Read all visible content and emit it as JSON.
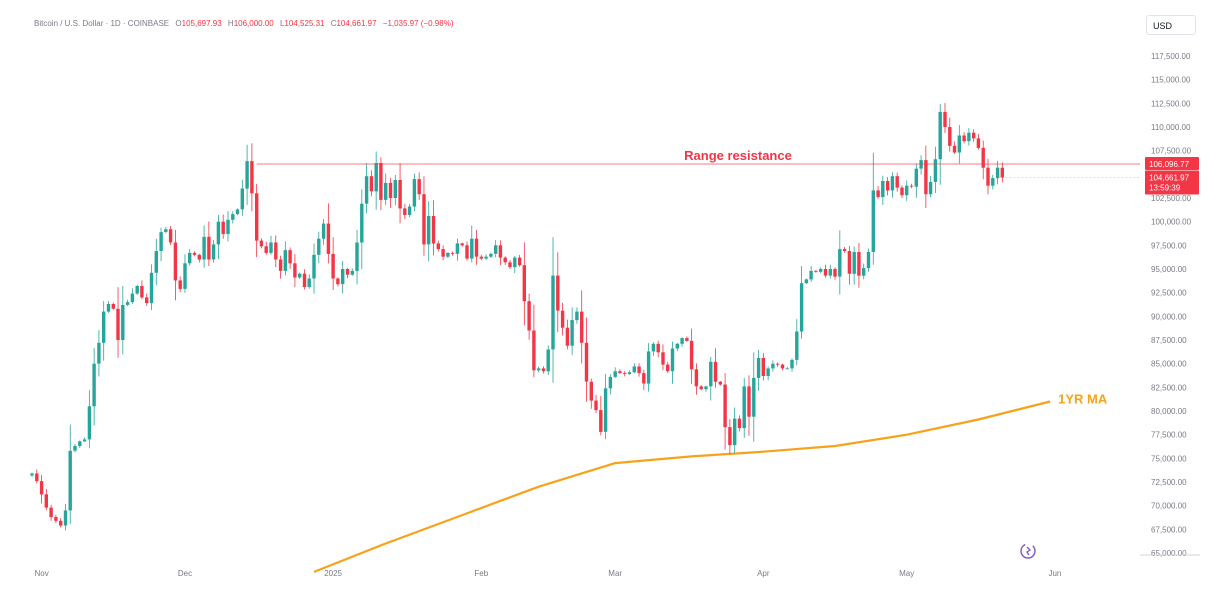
{
  "header": {
    "symbol": "Bitcoin / U.S. Dollar · 1D · COINBASE",
    "open_label": "O",
    "open": "105,697.93",
    "high_label": "H",
    "high": "106,000.00",
    "low_label": "L",
    "low": "104,525.31",
    "close_label": "C",
    "close": "104,661.97",
    "change": "−1,035.97 (−0.98%)"
  },
  "currency": "USD",
  "colors": {
    "up": "#26a69a",
    "down": "#f23645",
    "ma": "#f7a21b",
    "resistance": "#f23645",
    "axis_text": "#787b86"
  },
  "chart_data": {
    "type": "candlestick",
    "ylim": [
      65000,
      117500
    ],
    "y_ticks": [
      65000,
      67500,
      70000,
      72500,
      75000,
      77500,
      80000,
      82500,
      85000,
      87500,
      90000,
      92500,
      95000,
      97500,
      100000,
      102500,
      105000,
      107500,
      110000,
      112500,
      115000,
      117500
    ],
    "y_tick_labels": [
      "65,000.00",
      "67,500.00",
      "70,000.00",
      "72,500.00",
      "75,000.00",
      "77,500.00",
      "80,000.00",
      "82,500.00",
      "85,000.00",
      "87,500.00",
      "90,000.00",
      "92,500.00",
      "95,000.00",
      "97,500.00",
      "100,000.00",
      "102,500.00",
      "105,000.00",
      "107,500.00",
      "110,000.00",
      "112,500.00",
      "115,000.00",
      "117,500.00"
    ],
    "x_ticks": [
      {
        "label": "Nov",
        "date": "2024-11-01"
      },
      {
        "label": "Dec",
        "date": "2024-12-01"
      },
      {
        "label": "2025",
        "date": "2025-01-01"
      },
      {
        "label": "Feb",
        "date": "2025-02-01"
      },
      {
        "label": "Mar",
        "date": "2025-03-01"
      },
      {
        "label": "Apr",
        "date": "2025-04-01"
      },
      {
        "label": "May",
        "date": "2025-05-01"
      },
      {
        "label": "Jun",
        "date": "2025-06-01"
      }
    ],
    "start_date": "2024-10-30",
    "closes": [
      73400,
      72600,
      71200,
      69800,
      68800,
      68400,
      67900,
      69500,
      75800,
      76300,
      76800,
      77000,
      80500,
      85000,
      87200,
      90500,
      91300,
      90800,
      87500,
      91200,
      91500,
      92400,
      93200,
      92000,
      91400,
      94600,
      96900,
      98900,
      99200,
      97800,
      93800,
      92900,
      95600,
      96700,
      96500,
      96000,
      98400,
      96000,
      97600,
      100000,
      98700,
      100200,
      100800,
      101300,
      103500,
      106400,
      103000,
      98000,
      97400,
      96700,
      97800,
      96000,
      94800,
      97000,
      95600,
      94100,
      94500,
      93100,
      94000,
      96500,
      98200,
      99800,
      96600,
      94000,
      93400,
      95000,
      94400,
      94800,
      97800,
      101900,
      104800,
      103200,
      106200,
      102300,
      104100,
      102500,
      104400,
      101400,
      100700,
      101600,
      104500,
      102900,
      97600,
      100600,
      97700,
      97100,
      96300,
      96700,
      96600,
      97700,
      97500,
      96100,
      98200,
      96300,
      96100,
      96300,
      96600,
      97500,
      96200,
      95700,
      95200,
      96200,
      95400,
      91600,
      88500,
      84300,
      84500,
      84200,
      86500,
      94300,
      90600,
      88800,
      86900,
      89600,
      90500,
      87200,
      83100,
      81100,
      80100,
      77800,
      82400,
      83600,
      84200,
      84000,
      83900,
      84100,
      84700,
      84000,
      82900,
      86300,
      87100,
      86200,
      84900,
      84200,
      86600,
      87100,
      87700,
      87400,
      84400,
      82600,
      82300,
      82600,
      85200,
      83100,
      82800,
      78300,
      76400,
      79200,
      78200,
      82600,
      79400,
      83500,
      85600,
      83700,
      84500,
      85000,
      84900,
      84500,
      84500,
      85400,
      88400,
      93500,
      93900,
      94800,
      94700,
      95000,
      94300,
      95000,
      94200,
      97100,
      96900,
      94500,
      96800,
      94300,
      95100,
      96800,
      103300,
      102600,
      104300,
      103300,
      104800,
      103600,
      102800,
      103800,
      103700,
      105600,
      106500,
      102900,
      104200,
      106600,
      111600,
      110000,
      108000,
      107300,
      109100,
      108500,
      109400,
      108800,
      107800,
      105700,
      103800,
      104600,
      105700,
      104662
    ],
    "ma_series": {
      "name": "1YR MA",
      "points": [
        {
          "date": "2024-12-28",
          "value": 63000
        },
        {
          "date": "2025-01-12",
          "value": 66000
        },
        {
          "date": "2025-01-28",
          "value": 69000
        },
        {
          "date": "2025-02-13",
          "value": 72000
        },
        {
          "date": "2025-03-01",
          "value": 74500
        },
        {
          "date": "2025-03-17",
          "value": 75200
        },
        {
          "date": "2025-04-01",
          "value": 75700
        },
        {
          "date": "2025-04-16",
          "value": 76300
        },
        {
          "date": "2025-05-01",
          "value": 77500
        },
        {
          "date": "2025-05-16",
          "value": 79100
        },
        {
          "date": "2025-05-31",
          "value": 81000
        }
      ]
    },
    "resistance": {
      "label": "Range resistance",
      "value": 106096.77,
      "price_label": "106,096.77",
      "start_date": "2024-12-16"
    },
    "last_price": {
      "price_label": "104,661.97",
      "countdown": "13:59:39"
    }
  }
}
